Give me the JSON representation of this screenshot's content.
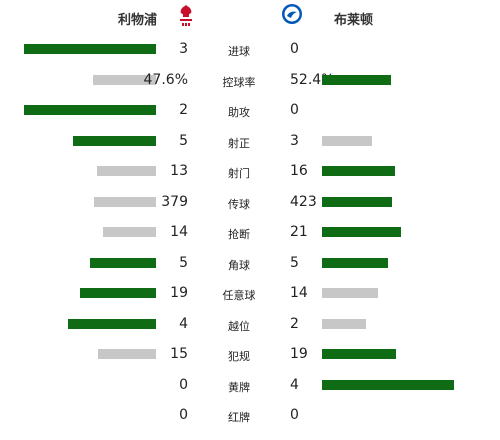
{
  "home": {
    "name": "利物浦",
    "crest": "liverpool-crest-icon",
    "color": "#c8102e"
  },
  "away": {
    "name": "布莱顿",
    "crest": "brighton-crest-icon",
    "color": "#0057b8"
  },
  "colors": {
    "leader_bar": "#0f6b14",
    "trailer_bar": "#c7c7c7"
  },
  "stats": [
    {
      "label": "进球",
      "home": "3",
      "away": "0",
      "home_share": 1.0,
      "away_share": 0.0
    },
    {
      "label": "控球率",
      "home": "47.6%",
      "away": "52.4%",
      "home_share": 0.476,
      "away_share": 0.524
    },
    {
      "label": "助攻",
      "home": "2",
      "away": "0",
      "home_share": 1.0,
      "away_share": 0.0
    },
    {
      "label": "射正",
      "home": "5",
      "away": "3",
      "home_share": 0.625,
      "away_share": 0.375
    },
    {
      "label": "射门",
      "home": "13",
      "away": "16",
      "home_share": 0.448,
      "away_share": 0.552
    },
    {
      "label": "传球",
      "home": "379",
      "away": "423",
      "home_share": 0.473,
      "away_share": 0.527
    },
    {
      "label": "抢断",
      "home": "14",
      "away": "21",
      "home_share": 0.4,
      "away_share": 0.6
    },
    {
      "label": "角球",
      "home": "5",
      "away": "5",
      "home_share": 0.5,
      "away_share": 0.5
    },
    {
      "label": "任意球",
      "home": "19",
      "away": "14",
      "home_share": 0.576,
      "away_share": 0.424
    },
    {
      "label": "越位",
      "home": "4",
      "away": "2",
      "home_share": 0.667,
      "away_share": 0.333
    },
    {
      "label": "犯规",
      "home": "15",
      "away": "19",
      "home_share": 0.441,
      "away_share": 0.559
    },
    {
      "label": "黄牌",
      "home": "0",
      "away": "4",
      "home_share": 0.0,
      "away_share": 1.0
    },
    {
      "label": "红牌",
      "home": "0",
      "away": "0",
      "home_share": 0.0,
      "away_share": 0.0
    }
  ]
}
